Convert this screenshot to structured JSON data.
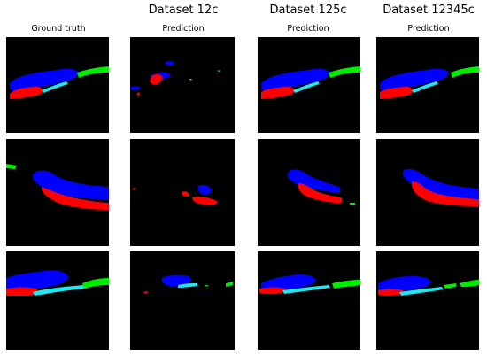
{
  "headers": [
    "Dataset 12c",
    "Dataset 125c",
    "Dataset 12345c"
  ],
  "columns": [
    "Ground truth",
    "Prediction",
    "Prediction",
    "Prediction"
  ]
}
